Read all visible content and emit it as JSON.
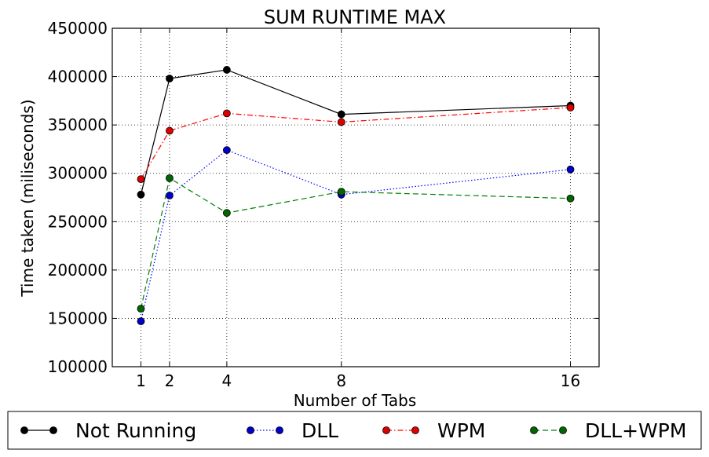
{
  "chart_data": {
    "type": "line",
    "title": "SUM RUNTIME MAX",
    "xlabel": "Number of Tabs",
    "ylabel": "Time taken (miliseconds)",
    "x": [
      1,
      2,
      4,
      8,
      16
    ],
    "x_ticks": [
      "1",
      "2",
      "4",
      "8",
      "16"
    ],
    "xlim": [
      0,
      17
    ],
    "ylim": [
      100000,
      450000
    ],
    "y_ticks": [
      "100000",
      "150000",
      "200000",
      "250000",
      "300000",
      "350000",
      "400000",
      "450000"
    ],
    "grid": true,
    "legend_position": "bottom",
    "series": [
      {
        "name": "Not Running",
        "values": [
          278000,
          398000,
          407000,
          361000,
          370000
        ],
        "color": "#000000",
        "marker_color": "#000000",
        "linestyle": "solid"
      },
      {
        "name": "DLL",
        "values": [
          147000,
          277000,
          324000,
          278000,
          304000
        ],
        "color": "#0000ff",
        "marker_color": "#0000cc",
        "linestyle": "dotted"
      },
      {
        "name": "WPM",
        "values": [
          294000,
          344000,
          362000,
          353000,
          368000
        ],
        "color": "#ff0000",
        "marker_color": "#dd0000",
        "linestyle": "dashdot"
      },
      {
        "name": "DLL+WPM",
        "values": [
          160000,
          295000,
          259000,
          281000,
          274000
        ],
        "color": "#008000",
        "marker_color": "#006600",
        "linestyle": "dashed"
      }
    ]
  }
}
